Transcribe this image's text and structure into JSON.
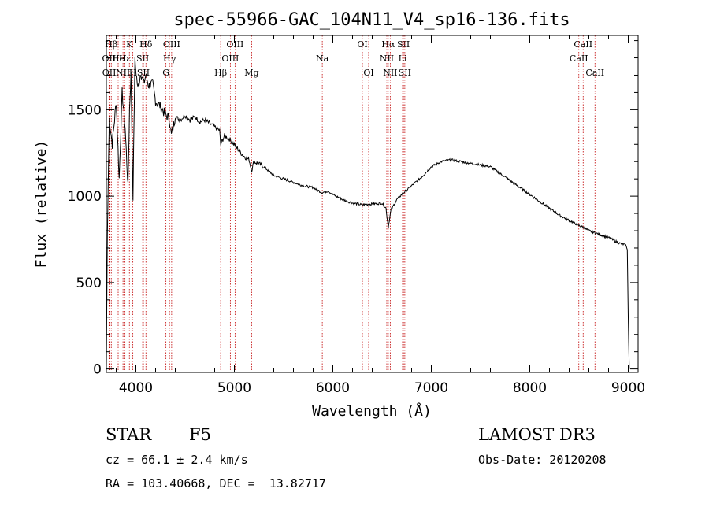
{
  "chart_data": {
    "type": "line",
    "title": "spec-55966-GAC_104N11_V4_sp16-136.fits",
    "xlabel": "Wavelength (Å)",
    "ylabel": "Flux (relative)",
    "xlim": [
      3700,
      9100
    ],
    "ylim": [
      -20,
      1930
    ],
    "xticks": [
      4000,
      5000,
      6000,
      7000,
      8000,
      9000
    ],
    "yticks": [
      0,
      500,
      1000,
      1500
    ],
    "series": [
      {
        "name": "spectrum",
        "color": "#000000",
        "x": [
          3700,
          3710,
          3730,
          3760,
          3800,
          3830,
          3860,
          3890,
          3920,
          3935,
          3950,
          3970,
          3990,
          4020,
          4050,
          4080,
          4101,
          4130,
          4170,
          4200,
          4250,
          4300,
          4340,
          4360,
          4400,
          4450,
          4500,
          4550,
          4600,
          4650,
          4700,
          4750,
          4800,
          4850,
          4861,
          4900,
          4950,
          5000,
          5050,
          5100,
          5150,
          5175,
          5200,
          5300,
          5400,
          5500,
          5600,
          5700,
          5800,
          5890,
          5950,
          6000,
          6100,
          6200,
          6300,
          6400,
          6500,
          6540,
          6563,
          6590,
          6650,
          6700,
          6800,
          6900,
          7000,
          7100,
          7200,
          7300,
          7400,
          7500,
          7600,
          7700,
          7800,
          7900,
          8000,
          8100,
          8200,
          8300,
          8400,
          8500,
          8542,
          8600,
          8700,
          8800,
          8900,
          8960,
          8980,
          8990,
          9000,
          9010
        ],
        "values": [
          0,
          780,
          1450,
          1300,
          1550,
          1100,
          1600,
          1400,
          1050,
          1500,
          1700,
          1000,
          1780,
          1620,
          1720,
          1650,
          1700,
          1640,
          1650,
          1550,
          1520,
          1470,
          1450,
          1350,
          1460,
          1440,
          1470,
          1440,
          1460,
          1430,
          1440,
          1420,
          1400,
          1380,
          1300,
          1350,
          1330,
          1300,
          1260,
          1230,
          1210,
          1150,
          1200,
          1170,
          1120,
          1100,
          1080,
          1060,
          1050,
          1020,
          1030,
          1010,
          980,
          960,
          950,
          955,
          960,
          930,
          820,
          920,
          980,
          1010,
          1060,
          1110,
          1170,
          1200,
          1210,
          1200,
          1190,
          1180,
          1170,
          1130,
          1090,
          1050,
          1010,
          970,
          930,
          890,
          860,
          830,
          820,
          800,
          780,
          760,
          730,
          720,
          710,
          690,
          300,
          0
        ]
      }
    ],
    "emission_lines": [
      {
        "label": "Hβ",
        "x": 3750,
        "row": 1
      },
      {
        "label": "OII",
        "x": 3727,
        "row": 2
      },
      {
        "label": "OII",
        "x": 3729,
        "row": 3
      },
      {
        "label": "He",
        "x": 3820,
        "row": 2
      },
      {
        "label": "K",
        "x": 3934,
        "row": 1
      },
      {
        "label": "Hε",
        "x": 3889,
        "row": 2
      },
      {
        "label": "H",
        "x": 3969,
        "row": 3
      },
      {
        "label": "NII",
        "x": 3869,
        "row": 3
      },
      {
        "label": "SII",
        "x": 4069,
        "row": 2
      },
      {
        "label": "SII",
        "x": 4076,
        "row": 3
      },
      {
        "label": "Hδ",
        "x": 4102,
        "row": 1
      },
      {
        "label": "OIII",
        "x": 4363,
        "row": 1
      },
      {
        "label": "Hγ",
        "x": 4341,
        "row": 2
      },
      {
        "label": "G",
        "x": 4305,
        "row": 3
      },
      {
        "label": "Hβ",
        "x": 4861,
        "row": 3
      },
      {
        "label": "OIII",
        "x": 5007,
        "row": 1
      },
      {
        "label": "OIII",
        "x": 4959,
        "row": 2
      },
      {
        "label": "Mg",
        "x": 5175,
        "row": 3
      },
      {
        "label": "Na",
        "x": 5893,
        "row": 2
      },
      {
        "label": "OI",
        "x": 6300,
        "row": 1
      },
      {
        "label": "OI",
        "x": 6364,
        "row": 3
      },
      {
        "label": "Hα",
        "x": 6563,
        "row": 1
      },
      {
        "label": "NII",
        "x": 6548,
        "row": 2
      },
      {
        "label": "NII",
        "x": 6583,
        "row": 3
      },
      {
        "label": "SII",
        "x": 6717,
        "row": 1
      },
      {
        "label": "Li",
        "x": 6708,
        "row": 2
      },
      {
        "label": "SII",
        "x": 6731,
        "row": 3
      },
      {
        "label": "CaII",
        "x": 8542,
        "row": 1
      },
      {
        "label": "CaII",
        "x": 8498,
        "row": 2
      },
      {
        "label": "CaII",
        "x": 8662,
        "row": 3
      }
    ]
  },
  "info": {
    "class_label": "STAR",
    "subclass": "F5",
    "survey": "LAMOST DR3",
    "cz": "cz = 66.1 ± 2.4 km/s",
    "obs_date": "Obs-Date: 20120208",
    "radec": "RA = 103.40668, DEC =  13.82717"
  },
  "colors": {
    "line_marker": "#c00000",
    "spectrum": "#000000"
  }
}
